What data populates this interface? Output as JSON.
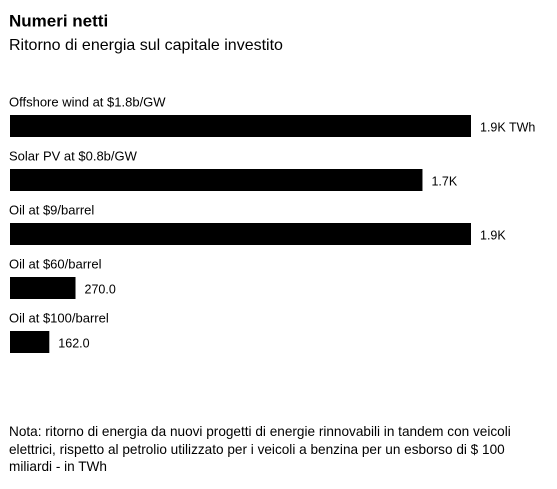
{
  "chart_data": {
    "type": "bar",
    "orientation": "horizontal",
    "title": "Numeri netti",
    "subtitle": "Ritorno di energia sul capitale investito",
    "categories": [
      "Offshore wind at $1.8b/GW",
      "Solar PV at $0.8b/GW",
      "Oil at $9/barrel",
      "Oil at $60/barrel",
      "Oil at $100/barrel"
    ],
    "values": [
      1900,
      1700,
      1900,
      270,
      162
    ],
    "value_labels": [
      "1.9K TWh",
      "1.7K",
      "1.9K",
      "270.0",
      "162.0"
    ],
    "color": "#000000",
    "note": "Nota: ritorno di energia da nuovi progetti di energie rinnovabili in tandem con veicoli elettrici, rispetto al petrolio utilizzato per i veicoli a benzina per un esborso di $ 100 miliardi - in TWh"
  }
}
